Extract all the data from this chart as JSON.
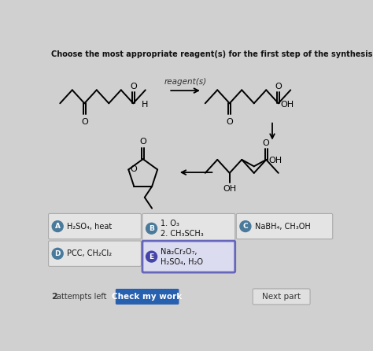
{
  "title": "Choose the most appropriate reagent(s) for the first step of the synthesis.",
  "background_color": "#d0d0d0",
  "reagent_label": "reagent(s)",
  "options": {
    "A": "H₂SO₄, heat",
    "B": "1. O₃\n2. CH₃SCH₃",
    "C": "NaBH₄, CH₃OH",
    "D": "PCC, CH₂Cl₂",
    "E": "Na₂Cr₂O₇,\nH₂SO₄, H₂O"
  },
  "selected_option": "E",
  "bottom_left_num": "2",
  "bottom_left_text": "attempts left",
  "btn_check": "Check my work",
  "btn_next": "Next part",
  "option_bg": "#e4e4e4",
  "option_border": "#aaaaaa",
  "selected_border": "#6666bb",
  "selected_bg": "#dcdcf0",
  "circle_bg": "#4a7a9b",
  "circle_selected_bg": "#4444aa",
  "circle_text_color": "#ffffff",
  "btn_check_bg": "#2860b0",
  "btn_check_text": "#ffffff",
  "btn_next_bg": "#e0e0e0",
  "btn_next_text": "#333333"
}
